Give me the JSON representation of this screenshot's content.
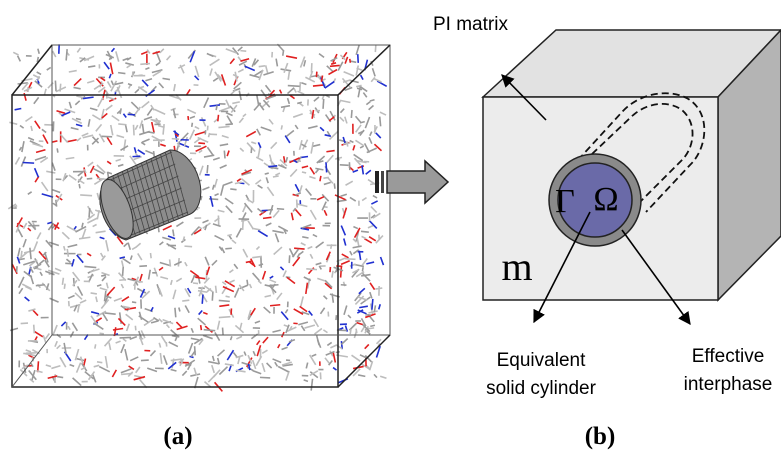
{
  "panel_a": {
    "label": "(a)"
  },
  "panel_b": {
    "label": "(b)",
    "matrix_label": "PI matrix",
    "interphase_symbol": "Γ",
    "cylinder_symbol": "Ω",
    "matrix_symbol": "m",
    "cylinder_label": [
      "Equivalent",
      "solid cylinder"
    ],
    "interphase_label": [
      "Effective",
      "interphase"
    ]
  }
}
